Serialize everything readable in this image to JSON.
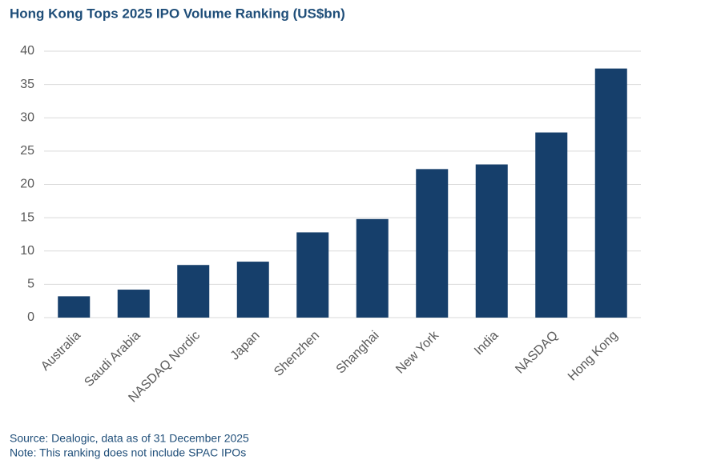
{
  "chart_data": {
    "type": "bar",
    "title": "Hong Kong Tops 2025 IPO Volume Ranking (US$bn)",
    "categories": [
      "Australia",
      "Saudi Arabia",
      "NASDAQ Nordic",
      "Japan",
      "Shenzhen",
      "Shanghai",
      "New York",
      "India",
      "NASDAQ",
      "Hong Kong"
    ],
    "values": [
      3.2,
      4.2,
      7.9,
      8.4,
      12.8,
      14.8,
      22.3,
      23.0,
      27.8,
      37.4
    ],
    "color": "#163f6b",
    "ylim": [
      0,
      40
    ],
    "yticks": [
      0,
      5,
      10,
      15,
      20,
      25,
      30,
      35,
      40
    ],
    "grid": true,
    "notes": [
      "Source: Dealogic, data as of 31 December 2025",
      "Note: This ranking does not include SPAC IPOs"
    ]
  }
}
